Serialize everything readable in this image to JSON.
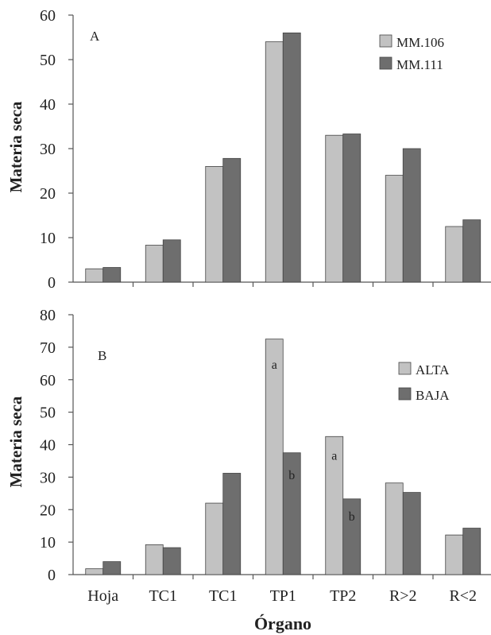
{
  "colors": {
    "light": "#c2c2c2",
    "dark": "#6e6e6e",
    "axis": "#555555"
  },
  "xlabel": "Órgano",
  "chart_data": [
    {
      "type": "bar",
      "panel_label": "A",
      "ylabel": "Materia seca",
      "ylim": [
        0,
        60
      ],
      "yticks": [
        0,
        10,
        20,
        30,
        40,
        50,
        60
      ],
      "categories": [
        "Hoja",
        "TC1",
        "TC1",
        "TP1",
        "TP2",
        "R>2",
        "R<2"
      ],
      "series": [
        {
          "name": "MM.106",
          "color": "#c2c2c2",
          "values": [
            3,
            8.3,
            26,
            54,
            33,
            24,
            12.5
          ]
        },
        {
          "name": "MM.111",
          "color": "#6e6e6e",
          "values": [
            3.3,
            9.5,
            27.8,
            56,
            33.3,
            30,
            14
          ]
        }
      ],
      "annotations": [],
      "legend_position": "top-right"
    },
    {
      "type": "bar",
      "panel_label": "B",
      "ylabel": "Materia seca",
      "ylim": [
        0,
        80
      ],
      "yticks": [
        0,
        10,
        20,
        30,
        40,
        50,
        60,
        70,
        80
      ],
      "categories": [
        "Hoja",
        "TC1",
        "TC1",
        "TP1",
        "TP2",
        "R>2",
        "R<2"
      ],
      "series": [
        {
          "name": "ALTA",
          "color": "#c2c2c2",
          "values": [
            1.8,
            9.2,
            22,
            72.5,
            42.5,
            28.2,
            12.2
          ]
        },
        {
          "name": "BAJA",
          "color": "#6e6e6e",
          "values": [
            4,
            8.3,
            31.2,
            37.5,
            23.3,
            25.3,
            14.3
          ]
        }
      ],
      "annotations": [
        {
          "category_index": 3,
          "series_index": 0,
          "text": "a"
        },
        {
          "category_index": 3,
          "series_index": 1,
          "text": "b"
        },
        {
          "category_index": 4,
          "series_index": 0,
          "text": "a"
        },
        {
          "category_index": 4,
          "series_index": 1,
          "text": "b"
        }
      ],
      "legend_position": "right"
    }
  ]
}
